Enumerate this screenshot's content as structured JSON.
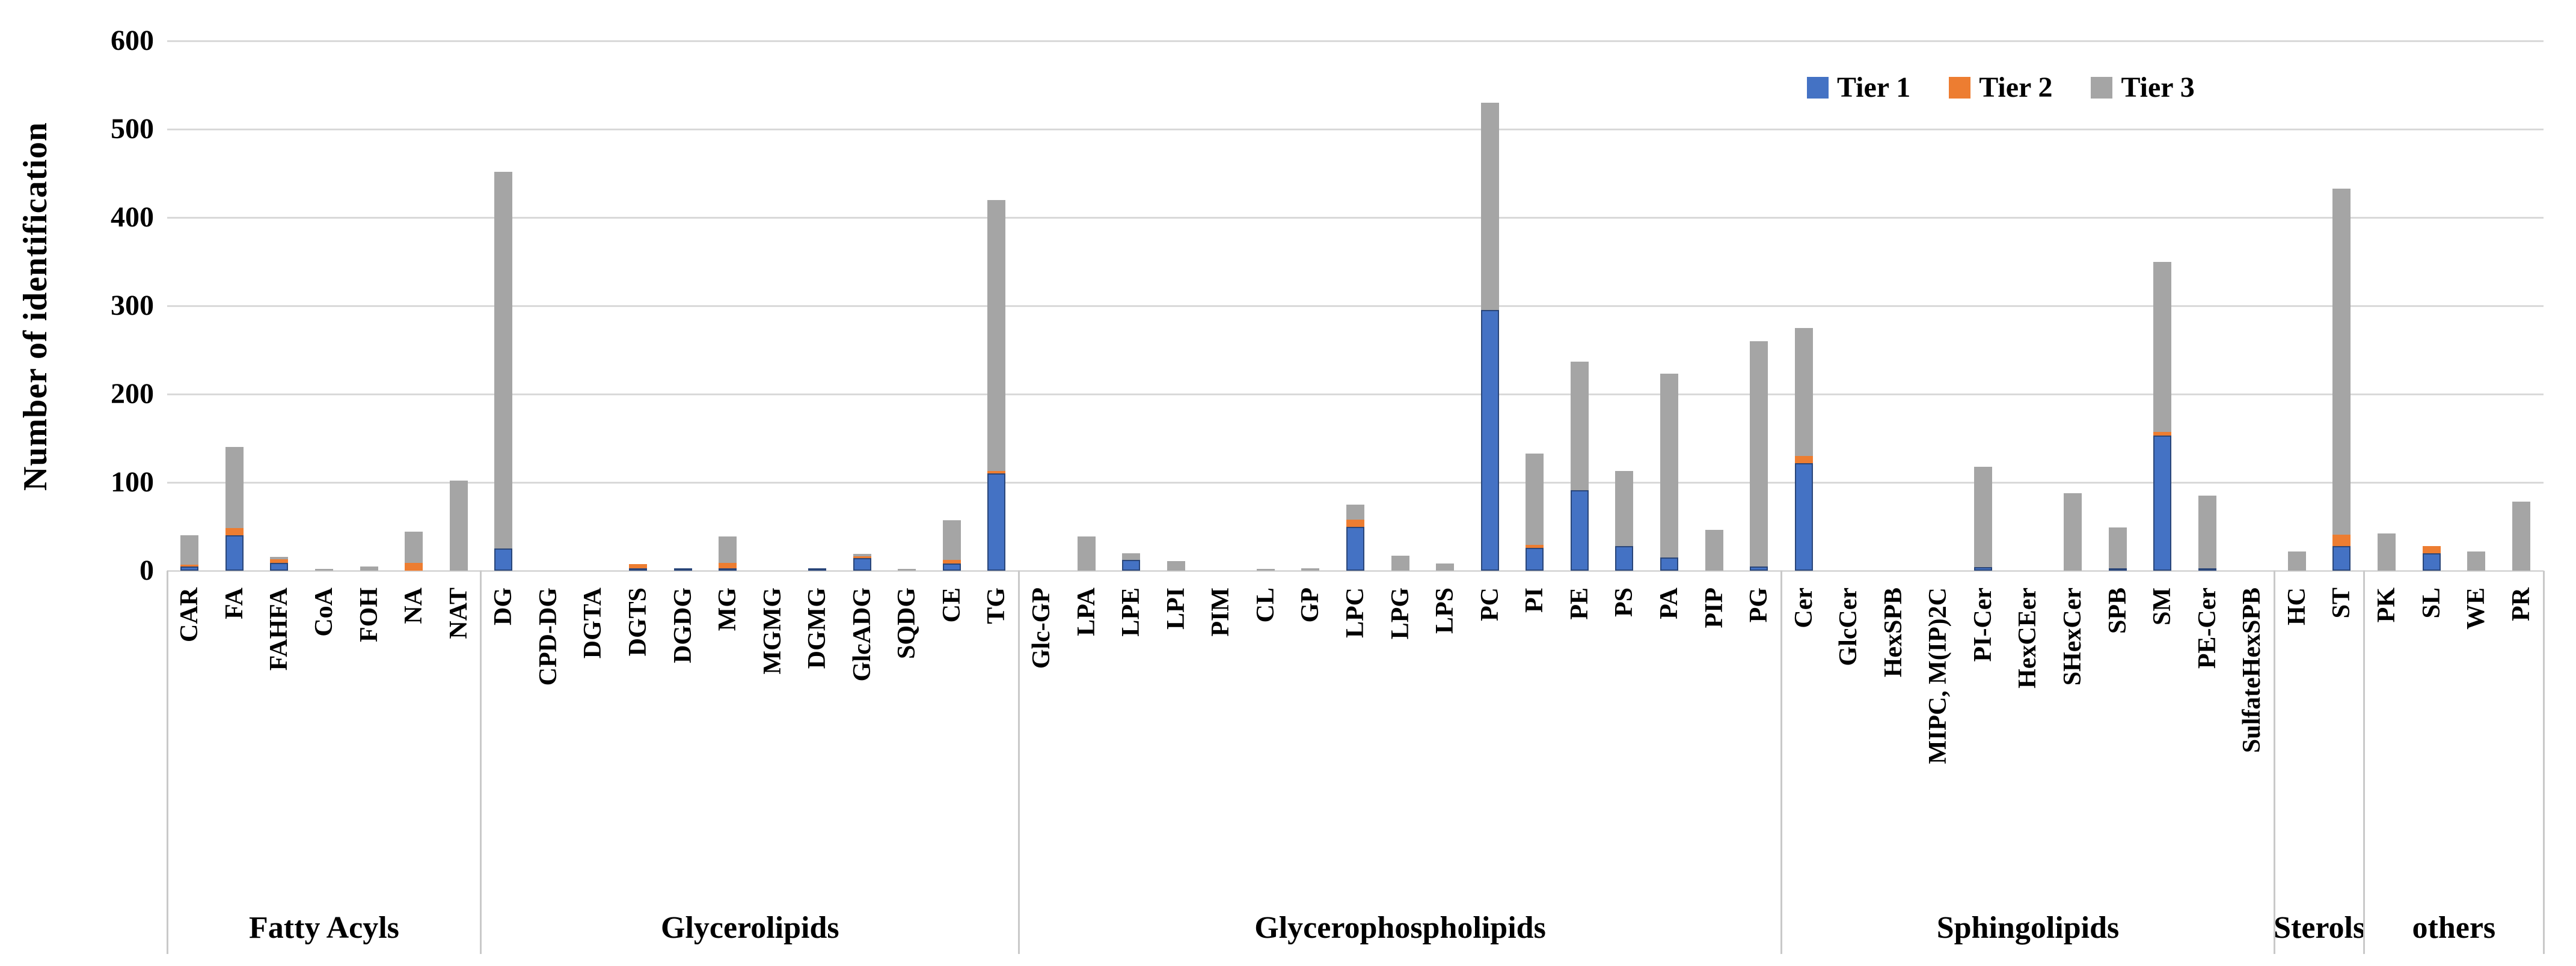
{
  "y_axis": {
    "title": "Number of identification"
  },
  "legend": {
    "items": [
      {
        "label": "Tier 1",
        "color": "#4472C4"
      },
      {
        "label": "Tier 2",
        "color": "#ED7D31"
      },
      {
        "label": "Tier 3",
        "color": "#A5A5A5"
      }
    ]
  },
  "chart_data": {
    "type": "bar",
    "stacked": true,
    "ylabel": "Number of identification",
    "xlabel": "",
    "title": "",
    "ylim": [
      0,
      600
    ],
    "yticks": [
      0,
      100,
      200,
      300,
      400,
      500,
      600
    ],
    "grid": "horizontal",
    "legend_position": "top-right",
    "series_names": [
      "Tier 1",
      "Tier 2",
      "Tier 3"
    ],
    "colors": {
      "tier1": "#4472C4",
      "tier1_border": "#2A4679",
      "tier2": "#ED7D31",
      "tier3": "#A5A5A5",
      "gridline": "#D9D9D9",
      "divider": "#C9C9C9"
    },
    "groups": [
      {
        "label": "Fatty Acyls",
        "count": 7
      },
      {
        "label": "Glycerolipids",
        "count": 12
      },
      {
        "label": "Glycerophospholipids",
        "count": 17
      },
      {
        "label": "Sphingolipids",
        "count": 11
      },
      {
        "label": "Sterols",
        "count": 2
      },
      {
        "label": "others",
        "count": 4
      }
    ],
    "categories": [
      {
        "label": "CAR",
        "group": "Fatty Acyls",
        "tier1": 5,
        "tier2": 2,
        "tier3": 33
      },
      {
        "label": "FA",
        "group": "Fatty Acyls",
        "tier1": 40,
        "tier2": 8,
        "tier3": 92
      },
      {
        "label": "FAHFA",
        "group": "Fatty Acyls",
        "tier1": 9,
        "tier2": 4,
        "tier3": 3
      },
      {
        "label": "CoA",
        "group": "Fatty Acyls",
        "tier1": 0,
        "tier2": 0,
        "tier3": 2
      },
      {
        "label": "FOH",
        "group": "Fatty Acyls",
        "tier1": 0,
        "tier2": 0,
        "tier3": 5
      },
      {
        "label": "NA",
        "group": "Fatty Acyls",
        "tier1": 0,
        "tier2": 9,
        "tier3": 35
      },
      {
        "label": "NAT",
        "group": "Fatty Acyls",
        "tier1": 0,
        "tier2": 0,
        "tier3": 102
      },
      {
        "label": "DG",
        "group": "Glycerolipids",
        "tier1": 25,
        "tier2": 0,
        "tier3": 427
      },
      {
        "label": "CPD-DG",
        "group": "Glycerolipids",
        "tier1": 0,
        "tier2": 0,
        "tier3": 0
      },
      {
        "label": "DGTA",
        "group": "Glycerolipids",
        "tier1": 0,
        "tier2": 0,
        "tier3": 0
      },
      {
        "label": "DGTS",
        "group": "Glycerolipids",
        "tier1": 1,
        "tier2": 5,
        "tier3": 0
      },
      {
        "label": "DGDG",
        "group": "Glycerolipids",
        "tier1": 2,
        "tier2": 0,
        "tier3": 0
      },
      {
        "label": "MG",
        "group": "Glycerolipids",
        "tier1": 2,
        "tier2": 6,
        "tier3": 30
      },
      {
        "label": "MGMG",
        "group": "Glycerolipids",
        "tier1": 0,
        "tier2": 0,
        "tier3": 0
      },
      {
        "label": "DGMG",
        "group": "Glycerolipids",
        "tier1": 2,
        "tier2": 0,
        "tier3": 0
      },
      {
        "label": "GlcADG",
        "group": "Glycerolipids",
        "tier1": 14,
        "tier2": 2,
        "tier3": 3
      },
      {
        "label": "SQDG",
        "group": "Glycerolipids",
        "tier1": 0,
        "tier2": 0,
        "tier3": 1
      },
      {
        "label": "CE",
        "group": "Glycerolipids",
        "tier1": 8,
        "tier2": 4,
        "tier3": 45
      },
      {
        "label": "TG",
        "group": "Glycerolipids",
        "tier1": 110,
        "tier2": 3,
        "tier3": 307
      },
      {
        "label": "Glc-GP",
        "group": "Glycerophospholipids",
        "tier1": 0,
        "tier2": 0,
        "tier3": 0
      },
      {
        "label": "LPA",
        "group": "Glycerophospholipids",
        "tier1": 0,
        "tier2": 0,
        "tier3": 39
      },
      {
        "label": "LPE",
        "group": "Glycerophospholipids",
        "tier1": 12,
        "tier2": 0,
        "tier3": 8
      },
      {
        "label": "LPI",
        "group": "Glycerophospholipids",
        "tier1": 0,
        "tier2": 0,
        "tier3": 11
      },
      {
        "label": "PIM",
        "group": "Glycerophospholipids",
        "tier1": 0,
        "tier2": 0,
        "tier3": 0
      },
      {
        "label": "CL",
        "group": "Glycerophospholipids",
        "tier1": 0,
        "tier2": 0,
        "tier3": 2
      },
      {
        "label": "GP",
        "group": "Glycerophospholipids",
        "tier1": 0,
        "tier2": 0,
        "tier3": 3
      },
      {
        "label": "LPC",
        "group": "Glycerophospholipids",
        "tier1": 50,
        "tier2": 8,
        "tier3": 17
      },
      {
        "label": "LPG",
        "group": "Glycerophospholipids",
        "tier1": 0,
        "tier2": 0,
        "tier3": 17
      },
      {
        "label": "LPS",
        "group": "Glycerophospholipids",
        "tier1": 0,
        "tier2": 0,
        "tier3": 8
      },
      {
        "label": "PC",
        "group": "Glycerophospholipids",
        "tier1": 295,
        "tier2": 0,
        "tier3": 235
      },
      {
        "label": "PI",
        "group": "Glycerophospholipids",
        "tier1": 26,
        "tier2": 3,
        "tier3": 104
      },
      {
        "label": "PE",
        "group": "Glycerophospholipids",
        "tier1": 91,
        "tier2": 0,
        "tier3": 146
      },
      {
        "label": "PS",
        "group": "Glycerophospholipids",
        "tier1": 28,
        "tier2": 0,
        "tier3": 85
      },
      {
        "label": "PA",
        "group": "Glycerophospholipids",
        "tier1": 15,
        "tier2": 0,
        "tier3": 208
      },
      {
        "label": "PIP",
        "group": "Glycerophospholipids",
        "tier1": 0,
        "tier2": 0,
        "tier3": 46
      },
      {
        "label": "PG",
        "group": "Glycerophospholipids",
        "tier1": 5,
        "tier2": 0,
        "tier3": 255
      },
      {
        "label": "Cer",
        "group": "Sphingolipids",
        "tier1": 122,
        "tier2": 8,
        "tier3": 145
      },
      {
        "label": "GlcCer",
        "group": "Sphingolipids",
        "tier1": 0,
        "tier2": 0,
        "tier3": 0
      },
      {
        "label": "HexSPB",
        "group": "Sphingolipids",
        "tier1": 0,
        "tier2": 0,
        "tier3": 0
      },
      {
        "label": "MIPC, M(IP)2C",
        "group": "Sphingolipids",
        "tier1": 0,
        "tier2": 0,
        "tier3": 0
      },
      {
        "label": "PI-Cer",
        "group": "Sphingolipids",
        "tier1": 4,
        "tier2": 0,
        "tier3": 114
      },
      {
        "label": "HexCEer",
        "group": "Sphingolipids",
        "tier1": 0,
        "tier2": 0,
        "tier3": 0
      },
      {
        "label": "SHexCer",
        "group": "Sphingolipids",
        "tier1": 0,
        "tier2": 0,
        "tier3": 88
      },
      {
        "label": "SPB",
        "group": "Sphingolipids",
        "tier1": 2,
        "tier2": 0,
        "tier3": 46
      },
      {
        "label": "SM",
        "group": "Sphingolipids",
        "tier1": 153,
        "tier2": 4,
        "tier3": 193
      },
      {
        "label": "PE-Cer",
        "group": "Sphingolipids",
        "tier1": 3,
        "tier2": 0,
        "tier3": 82
      },
      {
        "label": "SulfateHexSPB",
        "group": "Sphingolipids",
        "tier1": 0,
        "tier2": 0,
        "tier3": 0
      },
      {
        "label": "HC",
        "group": "Sterols",
        "tier1": 0,
        "tier2": 0,
        "tier3": 22
      },
      {
        "label": "ST",
        "group": "Sterols",
        "tier1": 28,
        "tier2": 13,
        "tier3": 392
      },
      {
        "label": "PK",
        "group": "others",
        "tier1": 0,
        "tier2": 0,
        "tier3": 42
      },
      {
        "label": "SL",
        "group": "others",
        "tier1": 20,
        "tier2": 8,
        "tier3": 0
      },
      {
        "label": "WE",
        "group": "others",
        "tier1": 0,
        "tier2": 0,
        "tier3": 22
      },
      {
        "label": "PR",
        "group": "others",
        "tier1": 0,
        "tier2": 0,
        "tier3": 78
      }
    ]
  }
}
